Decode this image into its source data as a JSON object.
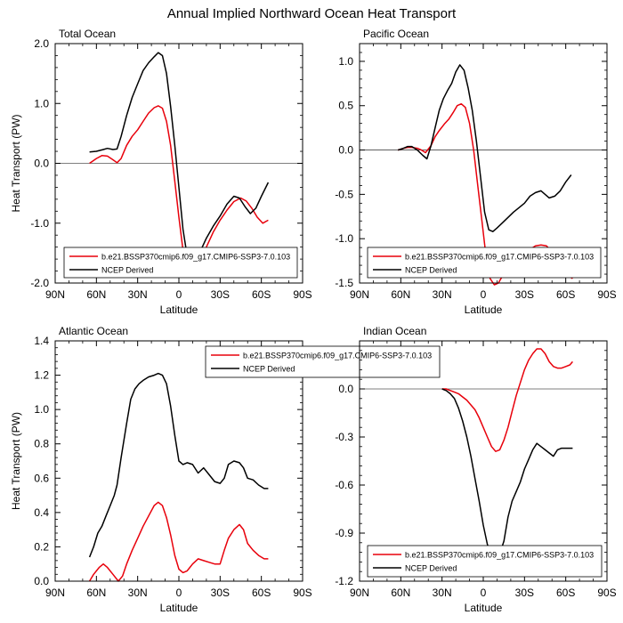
{
  "figure_title": "Annual Implied Northward Ocean Heat Transport",
  "colors": {
    "model": "#e8000b",
    "obs": "#000000",
    "axis": "#000000"
  },
  "chart_data": [
    {
      "type": "line",
      "title": "Total Ocean",
      "xlabel": "Latitude",
      "ylabel": "Heat Transport (PW)",
      "xlim": [
        90,
        -90
      ],
      "x_ticks": [
        90,
        60,
        30,
        0,
        -30,
        -60,
        -90
      ],
      "x_ticklabels": [
        "90N",
        "60N",
        "30N",
        "0",
        "30S",
        "60S",
        "90S"
      ],
      "ylim": [
        -2.0,
        2.0
      ],
      "y_ticks": [
        2.0,
        1.0,
        0.0,
        -1.0,
        -2.0
      ],
      "y_ticklabels": [
        "2.0",
        "1.0",
        "0.0",
        "-1.0",
        "-2.0"
      ],
      "zero_line": true,
      "legend": "bottom-right",
      "series": [
        {
          "name": "b.e21.BSSP370cmip6.f09_g17.CMIP6-SSP3-7.0.103",
          "color": "#e8000b",
          "x": [
            65,
            60,
            56,
            52,
            48,
            45,
            42,
            38,
            34,
            30,
            26,
            22,
            18,
            15,
            12,
            9,
            6,
            3,
            0,
            -3,
            -6,
            -9,
            -12,
            -16,
            -20,
            -25,
            -30,
            -35,
            -40,
            -45,
            -49,
            -53,
            -57,
            -61,
            -65
          ],
          "values": [
            0.0,
            0.08,
            0.13,
            0.12,
            0.06,
            0.01,
            0.08,
            0.3,
            0.45,
            0.56,
            0.7,
            0.84,
            0.93,
            0.96,
            0.92,
            0.7,
            0.3,
            -0.3,
            -0.9,
            -1.45,
            -1.75,
            -1.85,
            -1.78,
            -1.6,
            -1.4,
            -1.15,
            -0.95,
            -0.78,
            -0.64,
            -0.58,
            -0.63,
            -0.75,
            -0.9,
            -1.0,
            -0.95
          ]
        },
        {
          "name": "NCEP Derived",
          "color": "#000000",
          "x": [
            65,
            60,
            55,
            52,
            48,
            45,
            42,
            38,
            34,
            30,
            26,
            22,
            18,
            15,
            12,
            9,
            6,
            3,
            0,
            -3,
            -6,
            -9,
            -12,
            -16,
            -20,
            -25,
            -30,
            -35,
            -40,
            -44,
            -48,
            -52,
            -56,
            -60,
            -65
          ],
          "values": [
            0.19,
            0.2,
            0.23,
            0.25,
            0.23,
            0.24,
            0.45,
            0.8,
            1.1,
            1.33,
            1.55,
            1.68,
            1.78,
            1.85,
            1.8,
            1.5,
            0.95,
            0.3,
            -0.4,
            -1.1,
            -1.55,
            -1.65,
            -1.6,
            -1.45,
            -1.25,
            -1.05,
            -0.88,
            -0.68,
            -0.55,
            -0.58,
            -0.72,
            -0.84,
            -0.75,
            -0.55,
            -0.32
          ]
        }
      ]
    },
    {
      "type": "line",
      "title": "Pacific Ocean",
      "xlabel": "Latitude",
      "ylabel": "",
      "xlim": [
        90,
        -90
      ],
      "x_ticks": [
        90,
        60,
        30,
        0,
        -30,
        -60,
        -90
      ],
      "x_ticklabels": [
        "90N",
        "60N",
        "30N",
        "0",
        "30S",
        "60S",
        "90S"
      ],
      "ylim": [
        -1.5,
        1.2
      ],
      "y_ticks": [
        1.0,
        0.5,
        0.0,
        -0.5,
        -1.0,
        -1.5
      ],
      "y_ticklabels": [
        "1.0",
        "0.5",
        "0.0",
        "-0.5",
        "-1.0",
        "-1.5"
      ],
      "zero_line": true,
      "legend": "bottom-right",
      "series": [
        {
          "name": "b.e21.BSSP370cmip6.f09_g17.CMIP6-SSP3-7.0.103",
          "color": "#e8000b",
          "x": [
            62,
            58,
            55,
            52,
            48,
            45,
            42,
            38,
            35,
            32,
            28,
            25,
            22,
            19,
            16,
            13,
            10,
            7,
            4,
            1,
            -2,
            -5,
            -8,
            -11,
            -14,
            -18,
            -22,
            -26,
            -30,
            -34,
            -38,
            -42,
            -46,
            -50,
            -54,
            -58,
            -62,
            -65
          ],
          "values": [
            0.0,
            0.02,
            0.03,
            0.03,
            0.02,
            0.0,
            -0.03,
            0.05,
            0.15,
            0.22,
            0.3,
            0.35,
            0.42,
            0.5,
            0.52,
            0.48,
            0.3,
            0.0,
            -0.4,
            -0.8,
            -1.2,
            -1.45,
            -1.52,
            -1.5,
            -1.42,
            -1.35,
            -1.3,
            -1.25,
            -1.2,
            -1.12,
            -1.08,
            -1.07,
            -1.08,
            -1.15,
            -1.25,
            -1.35,
            -1.42,
            -1.45
          ]
        },
        {
          "name": "NCEP Derived",
          "color": "#000000",
          "x": [
            62,
            58,
            55,
            52,
            48,
            44,
            41,
            38,
            35,
            32,
            29,
            26,
            23,
            20,
            17,
            14,
            11,
            8,
            5,
            2,
            -1,
            -4,
            -7,
            -10,
            -14,
            -18,
            -22,
            -26,
            -30,
            -34,
            -38,
            -42,
            -45,
            -48,
            -52,
            -56,
            -60,
            -64
          ],
          "values": [
            0.0,
            0.02,
            0.04,
            0.04,
            0.0,
            -0.06,
            -0.1,
            0.05,
            0.25,
            0.45,
            0.58,
            0.67,
            0.75,
            0.88,
            0.96,
            0.9,
            0.7,
            0.45,
            0.1,
            -0.3,
            -0.7,
            -0.9,
            -0.92,
            -0.88,
            -0.82,
            -0.76,
            -0.7,
            -0.65,
            -0.6,
            -0.52,
            -0.48,
            -0.46,
            -0.5,
            -0.54,
            -0.52,
            -0.46,
            -0.36,
            -0.28
          ]
        }
      ]
    },
    {
      "type": "line",
      "title": "Atlantic Ocean",
      "xlabel": "Latitude",
      "ylabel": "Heat Transport (PW)",
      "xlim": [
        90,
        -90
      ],
      "x_ticks": [
        90,
        60,
        30,
        0,
        -30,
        -60,
        -90
      ],
      "x_ticklabels": [
        "90N",
        "60N",
        "30N",
        "0",
        "30S",
        "60S",
        "90S"
      ],
      "ylim": [
        0.0,
        1.4
      ],
      "y_ticks": [
        1.4,
        1.2,
        1.0,
        0.8,
        0.6,
        0.4,
        0.2,
        0.0
      ],
      "y_ticklabels": [
        "1.4",
        "1.2",
        "1.0",
        "0.8",
        "0.6",
        "0.4",
        "0.2",
        "0.0"
      ],
      "zero_line": false,
      "legend": "top-center",
      "series": [
        {
          "name": "b.e21.BSSP370cmip6.f09_g17.CMIP6-SSP3-7.0.103",
          "color": "#e8000b",
          "x": [
            65,
            62,
            58,
            55,
            52,
            48,
            44,
            41,
            38,
            34,
            30,
            26,
            22,
            18,
            15,
            12,
            9,
            6,
            3,
            0,
            -3,
            -6,
            -10,
            -14,
            -18,
            -22,
            -26,
            -30,
            -33,
            -36,
            -40,
            -44,
            -47,
            -50,
            -54,
            -58,
            -62,
            -65
          ],
          "values": [
            0.0,
            0.04,
            0.08,
            0.1,
            0.08,
            0.04,
            0.0,
            0.03,
            0.1,
            0.18,
            0.25,
            0.32,
            0.38,
            0.44,
            0.46,
            0.44,
            0.37,
            0.27,
            0.15,
            0.07,
            0.05,
            0.06,
            0.1,
            0.13,
            0.12,
            0.11,
            0.1,
            0.1,
            0.18,
            0.25,
            0.3,
            0.33,
            0.3,
            0.22,
            0.18,
            0.15,
            0.13,
            0.13
          ]
        },
        {
          "name": "NCEP Derived",
          "color": "#000000",
          "x": [
            65,
            62,
            59,
            56,
            53,
            50,
            47,
            45,
            42,
            38,
            35,
            32,
            29,
            26,
            22,
            18,
            15,
            12,
            9,
            6,
            3,
            0,
            -3,
            -6,
            -10,
            -14,
            -18,
            -22,
            -26,
            -30,
            -33,
            -36,
            -40,
            -44,
            -47,
            -50,
            -54,
            -58,
            -62,
            -65
          ],
          "values": [
            0.14,
            0.2,
            0.28,
            0.32,
            0.38,
            0.44,
            0.5,
            0.56,
            0.72,
            0.92,
            1.06,
            1.12,
            1.15,
            1.17,
            1.19,
            1.2,
            1.21,
            1.2,
            1.15,
            1.02,
            0.85,
            0.7,
            0.68,
            0.69,
            0.68,
            0.63,
            0.66,
            0.62,
            0.58,
            0.57,
            0.6,
            0.68,
            0.7,
            0.69,
            0.66,
            0.6,
            0.59,
            0.56,
            0.54,
            0.54
          ]
        }
      ]
    },
    {
      "type": "line",
      "title": "Indian Ocean",
      "xlabel": "Latitude",
      "ylabel": "",
      "xlim": [
        90,
        -90
      ],
      "x_ticks": [
        90,
        60,
        30,
        0,
        -30,
        -60,
        -90
      ],
      "x_ticklabels": [
        "90N",
        "60N",
        "30N",
        "0",
        "30S",
        "60S",
        "90S"
      ],
      "ylim": [
        -1.2,
        0.3
      ],
      "y_ticks": [
        0.0,
        -0.3,
        -0.6,
        -0.9,
        -1.2
      ],
      "y_ticklabels": [
        "0.0",
        "-0.3",
        "-0.6",
        "-0.9",
        "-1.2"
      ],
      "zero_line": true,
      "legend": "bottom-right",
      "series": [
        {
          "name": "b.e21.BSSP370cmip6.f09_g17.CMIP6-SSP3-7.0.103",
          "color": "#e8000b",
          "x": [
            30,
            27,
            24,
            21,
            18,
            15,
            12,
            9,
            6,
            3,
            0,
            -3,
            -6,
            -9,
            -12,
            -15,
            -18,
            -21,
            -24,
            -27,
            -30,
            -33,
            -36,
            -39,
            -42,
            -45,
            -48,
            -51,
            -54,
            -57,
            -60,
            -63,
            -65
          ],
          "values": [
            0.0,
            0.0,
            -0.01,
            -0.02,
            -0.03,
            -0.05,
            -0.07,
            -0.1,
            -0.13,
            -0.18,
            -0.24,
            -0.3,
            -0.36,
            -0.39,
            -0.38,
            -0.32,
            -0.24,
            -0.14,
            -0.04,
            0.04,
            0.12,
            0.18,
            0.22,
            0.25,
            0.25,
            0.22,
            0.17,
            0.14,
            0.13,
            0.13,
            0.14,
            0.15,
            0.17
          ]
        },
        {
          "name": "NCEP Derived",
          "color": "#000000",
          "x": [
            30,
            27,
            24,
            21,
            18,
            15,
            12,
            9,
            6,
            3,
            0,
            -3,
            -6,
            -9,
            -12,
            -15,
            -18,
            -21,
            -24,
            -27,
            -30,
            -33,
            -36,
            -39,
            -42,
            -45,
            -48,
            -51,
            -54,
            -57,
            -60,
            -63,
            -65
          ],
          "values": [
            0.0,
            -0.01,
            -0.03,
            -0.06,
            -0.12,
            -0.2,
            -0.3,
            -0.42,
            -0.56,
            -0.7,
            -0.85,
            -0.97,
            -1.05,
            -1.08,
            -1.03,
            -0.95,
            -0.8,
            -0.7,
            -0.64,
            -0.58,
            -0.5,
            -0.44,
            -0.38,
            -0.34,
            -0.36,
            -0.38,
            -0.4,
            -0.42,
            -0.38,
            -0.37,
            -0.37,
            -0.37,
            -0.37
          ]
        }
      ]
    }
  ]
}
